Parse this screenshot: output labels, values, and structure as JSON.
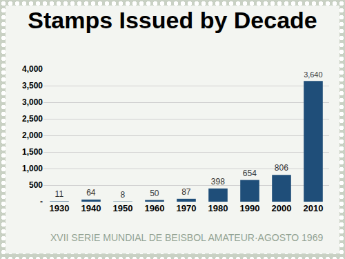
{
  "chart_data": {
    "type": "bar",
    "title": "Stamps Issued by Decade",
    "categories": [
      "1930",
      "1940",
      "1950",
      "1960",
      "1970",
      "1980",
      "1990",
      "2000",
      "2010"
    ],
    "values": [
      11,
      64,
      8,
      50,
      87,
      398,
      654,
      806,
      3640
    ],
    "value_labels": [
      "11",
      "64",
      "8",
      "50",
      "87",
      "398",
      "654",
      "806",
      "3,640"
    ],
    "data_labels": true,
    "color": "#1f4e79",
    "ylim": [
      0,
      4000
    ],
    "yticks": [
      {
        "value": 0,
        "label": "-"
      },
      500,
      {
        "value": 1000,
        "label": "1,000"
      },
      {
        "value": 1500,
        "label": "1,500"
      },
      {
        "value": 2000,
        "label": "2,000"
      },
      {
        "value": 2500,
        "label": "2,500"
      },
      {
        "value": 3000,
        "label": "3,000"
      },
      {
        "value": 3500,
        "label": "3,500"
      },
      {
        "value": 4000,
        "label": "4,000"
      }
    ],
    "grid": true,
    "annotations": [
      "XVII SERIE MUNDIAL DE BEISBOL AMATEUR·AGOSTO 1969"
    ]
  }
}
